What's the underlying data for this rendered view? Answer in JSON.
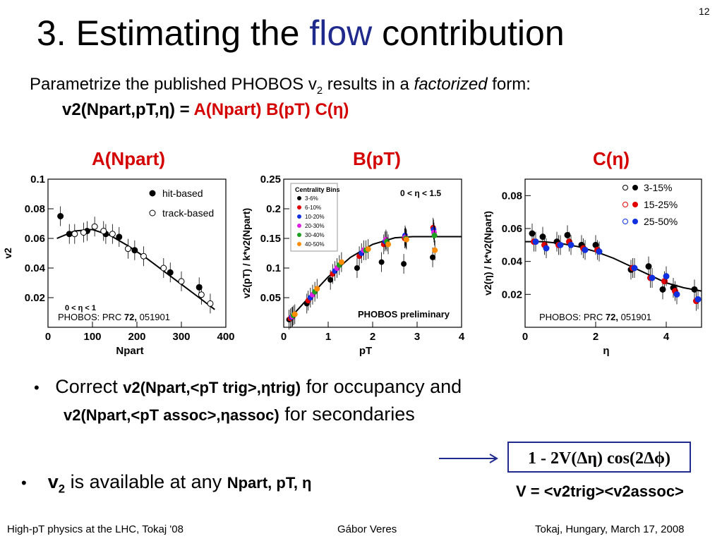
{
  "slide": {
    "page_number": "12",
    "title_pre": "3. Estimating the ",
    "title_highlight": "flow",
    "title_post": " contribution",
    "intro_pre": "Parametrize the published PHOBOS v",
    "intro_sub": "2",
    "intro_mid": " results in a ",
    "intro_em": "factorized",
    "intro_post": " form:"
  },
  "formula": {
    "lhs": "v2(Npart,pT,η)  =",
    "rhs": "A(Npart) B(pT) C(η)"
  },
  "panel_titles": [
    "A(Npart)",
    "B(pT)",
    "C(η)"
  ],
  "colors": {
    "accent_red": "#d40000",
    "title_blue": "#1f2a8c",
    "centrality": [
      "#000000",
      "#e00000",
      "#1030e0",
      "#e020e0",
      "#20a020",
      "#ff8c00"
    ]
  },
  "chart_data": [
    {
      "type": "scatter",
      "xlabel": "Npart",
      "ylabel": "v2",
      "xlim": [
        0,
        400
      ],
      "ylim": [
        0,
        0.1
      ],
      "xticks": [
        "0",
        "100",
        "200",
        "300",
        "400"
      ],
      "yticks": [
        "0.02",
        "0.04",
        "0.06",
        "0.08",
        "0.1"
      ],
      "legend_position": "top-right",
      "annotation": "0 < η < 1",
      "source_pre": "PHOBOS: PRC ",
      "source_vol": "72,",
      "source_post": " 051901",
      "series": [
        {
          "name": "hit-based",
          "marker": "filled",
          "x": [
            28,
            48,
            88,
            130,
            160,
            195,
            275,
            340
          ],
          "y": [
            0.075,
            0.063,
            0.065,
            0.063,
            0.061,
            0.052,
            0.037,
            0.027
          ]
        },
        {
          "name": "track-based",
          "marker": "open",
          "x": [
            60,
            80,
            105,
            125,
            145,
            180,
            215,
            260,
            300,
            345,
            365
          ],
          "y": [
            0.063,
            0.064,
            0.068,
            0.065,
            0.063,
            0.053,
            0.048,
            0.04,
            0.031,
            0.022,
            0.016
          ]
        }
      ],
      "fit": {
        "x": [
          20,
          60,
          100,
          140,
          180,
          220,
          260,
          300,
          340,
          375
        ],
        "y": [
          0.06,
          0.065,
          0.066,
          0.062,
          0.055,
          0.047,
          0.038,
          0.029,
          0.02,
          0.012
        ]
      }
    },
    {
      "type": "scatter",
      "xlabel": "pT",
      "ylabel": "v2(pT) / k*v2(Npart)",
      "xlim": [
        0,
        4
      ],
      "ylim": [
        0,
        0.25
      ],
      "xticks": [
        "0",
        "1",
        "2",
        "3",
        "4"
      ],
      "yticks": [
        "0.05",
        "0.1",
        "0.15",
        "0.2",
        "0.25"
      ],
      "legend_title": "Centrality Bins",
      "legend_position": "top-left",
      "annotation": "0 < η < 1.5",
      "label_bottom": "PHOBOS preliminary",
      "series": [
        {
          "name": "3-6%",
          "x": [
            0.12,
            0.52,
            1.05,
            1.65,
            2.2,
            2.7,
            3.35
          ],
          "y": [
            0.013,
            0.04,
            0.08,
            0.1,
            0.11,
            0.107,
            0.118
          ]
        },
        {
          "name": "6-10%",
          "x": [
            0.15,
            0.55,
            1.1,
            1.7,
            2.25,
            2.72,
            3.36
          ],
          "y": [
            0.015,
            0.045,
            0.09,
            0.12,
            0.14,
            0.15,
            0.168
          ]
        },
        {
          "name": "10-20%",
          "x": [
            0.18,
            0.6,
            1.15,
            1.75,
            2.28,
            2.73,
            3.37
          ],
          "y": [
            0.017,
            0.05,
            0.095,
            0.125,
            0.145,
            0.155,
            0.165
          ]
        },
        {
          "name": "20-30%",
          "x": [
            0.2,
            0.65,
            1.2,
            1.8,
            2.3,
            2.74,
            3.38
          ],
          "y": [
            0.018,
            0.055,
            0.1,
            0.13,
            0.148,
            0.152,
            0.16
          ]
        },
        {
          "name": "30-40%",
          "x": [
            0.22,
            0.7,
            1.25,
            1.85,
            2.32,
            2.75,
            3.39
          ],
          "y": [
            0.02,
            0.06,
            0.105,
            0.13,
            0.145,
            0.15,
            0.155
          ]
        },
        {
          "name": "40-50%",
          "x": [
            0.25,
            0.75,
            1.3,
            1.9,
            2.35,
            2.76,
            3.4
          ],
          "y": [
            0.022,
            0.065,
            0.11,
            0.132,
            0.14,
            0.148,
            0.13
          ]
        }
      ],
      "fit": {
        "x": [
          0.1,
          0.5,
          1.0,
          1.5,
          2.0,
          2.5,
          2.9,
          3.5,
          4.0
        ],
        "y": [
          0.012,
          0.045,
          0.085,
          0.118,
          0.14,
          0.151,
          0.153,
          0.153,
          0.153
        ]
      }
    },
    {
      "type": "scatter",
      "xlabel": "η",
      "ylabel": "v2(η) / k*v2(Npart)",
      "xlim": [
        0,
        5
      ],
      "ylim": [
        0,
        0.09
      ],
      "xticks": [
        "0",
        "2",
        "4"
      ],
      "yticks": [
        "0.02",
        "0.04",
        "0.06",
        "0.08"
      ],
      "legend_position": "top-right",
      "source_pre": "PHOBOS: PRC ",
      "source_vol": "72,",
      "source_post": " 051901",
      "series": [
        {
          "name": "3-15%",
          "color": "#000000",
          "x": [
            0.2,
            0.5,
            0.9,
            1.2,
            1.6,
            2.0,
            3.0,
            3.5,
            3.9,
            4.2,
            4.8
          ],
          "y": [
            0.057,
            0.055,
            0.052,
            0.056,
            0.05,
            0.05,
            0.035,
            0.037,
            0.023,
            0.024,
            0.023
          ]
        },
        {
          "name": "15-25%",
          "color": "#e00000",
          "x": [
            0.25,
            0.55,
            0.95,
            1.25,
            1.65,
            2.05,
            3.05,
            3.55,
            3.95,
            4.25,
            4.85
          ],
          "y": [
            0.052,
            0.05,
            0.05,
            0.052,
            0.048,
            0.047,
            0.036,
            0.03,
            0.028,
            0.022,
            0.016
          ]
        },
        {
          "name": "25-50%",
          "color": "#1030e0",
          "x": [
            0.3,
            0.6,
            1.0,
            1.3,
            1.7,
            2.1,
            3.1,
            3.6,
            4.0,
            4.3,
            4.9
          ],
          "y": [
            0.052,
            0.048,
            0.05,
            0.05,
            0.047,
            0.046,
            0.036,
            0.03,
            0.031,
            0.02,
            0.017
          ]
        }
      ],
      "fit": {
        "x": [
          0,
          0.5,
          1.0,
          1.5,
          2.0,
          2.5,
          3.0,
          3.5,
          4.0,
          4.5,
          5.0
        ],
        "y": [
          0.052,
          0.052,
          0.051,
          0.049,
          0.046,
          0.042,
          0.037,
          0.032,
          0.027,
          0.024,
          0.022
        ]
      }
    }
  ],
  "bullets": {
    "b1_pre": "Correct ",
    "b1_f1": "v2(Npart,<pT trig>,ηtrig)",
    "b1_post": " for occupancy and",
    "b1_f2": "v2(Npart,<pT assoc>,ηassoc)",
    "b1_post2": " for secondaries",
    "b2_a": "v",
    "b2_sub": "2",
    "b2_b": " is available at any ",
    "b2_c": "Npart, pT, η"
  },
  "boxed_formula": "1 - 2V(Δη) cos(2Δϕ)",
  "v_definition": "V = <v2trig><v2assoc>",
  "footer": {
    "left": "High-pT physics at the LHC, Tokaj '08",
    "center": "Gábor Veres",
    "right": "Tokaj, Hungary, March 17, 2008"
  }
}
